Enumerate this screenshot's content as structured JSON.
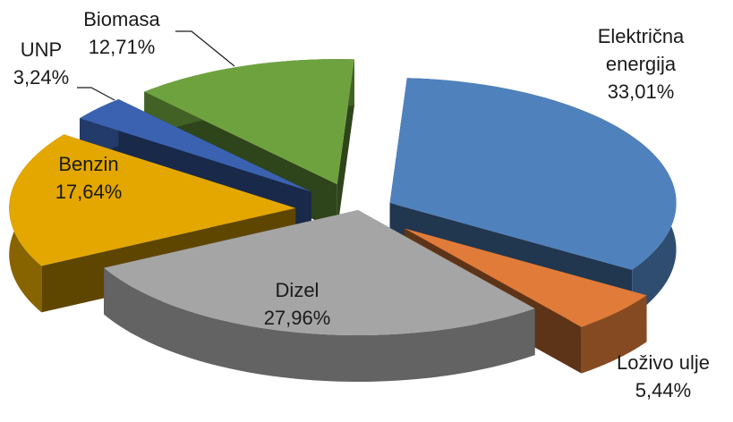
{
  "chart_data": {
    "type": "pie",
    "style": "3d-exploded",
    "slices": [
      {
        "name": "Električna energija",
        "label_lines": [
          "Električna",
          "energija"
        ],
        "value": 33.01,
        "value_text": "33,01%",
        "color": "#4f81bd"
      },
      {
        "name": "Loživo ulje",
        "label_lines": [
          "Loživo ulje"
        ],
        "value": 5.44,
        "value_text": "5,44%",
        "color": "#e07b39"
      },
      {
        "name": "Dizel",
        "label_lines": [
          "Dizel"
        ],
        "value": 27.96,
        "value_text": "27,96%",
        "color": "#a5a5a5"
      },
      {
        "name": "Benzin",
        "label_lines": [
          "Benzin"
        ],
        "value": 17.64,
        "value_text": "17,64%",
        "color": "#e3a700"
      },
      {
        "name": "UNP",
        "label_lines": [
          "UNP"
        ],
        "value": 3.24,
        "value_text": "3,24%",
        "color": "#3a62b0"
      },
      {
        "name": "Biomasa",
        "label_lines": [
          "Biomasa"
        ],
        "value": 12.71,
        "value_text": "12,71%",
        "color": "#6ea23e"
      }
    ],
    "legend": "none"
  }
}
